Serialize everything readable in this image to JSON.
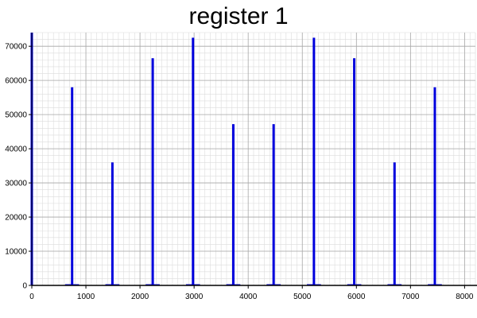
{
  "chart_data": {
    "type": "bar",
    "title": "register 1",
    "xlabel": "",
    "ylabel": "",
    "xlim": [
      0,
      8200
    ],
    "ylim": [
      0,
      74000
    ],
    "grid": true,
    "x_ticks": [
      0,
      1000,
      2000,
      3000,
      4000,
      5000,
      6000,
      7000,
      8000
    ],
    "y_ticks": [
      0,
      10000,
      20000,
      30000,
      40000,
      50000,
      60000,
      70000
    ],
    "bar_color": "#0000dd",
    "x": [
      0,
      745,
      1490,
      2235,
      2980,
      3725,
      4470,
      5215,
      5960,
      6705,
      7450
    ],
    "values": [
      74000,
      58000,
      36000,
      66500,
      72500,
      47200,
      47200,
      72500,
      66500,
      36000,
      58000
    ],
    "x_tick_labels": [
      "0",
      "1000",
      "2000",
      "3000",
      "4000",
      "5000",
      "6000",
      "7000",
      "8000"
    ],
    "y_tick_labels": [
      "0",
      "10000",
      "20000",
      "30000",
      "40000",
      "50000",
      "60000",
      "70000"
    ]
  }
}
